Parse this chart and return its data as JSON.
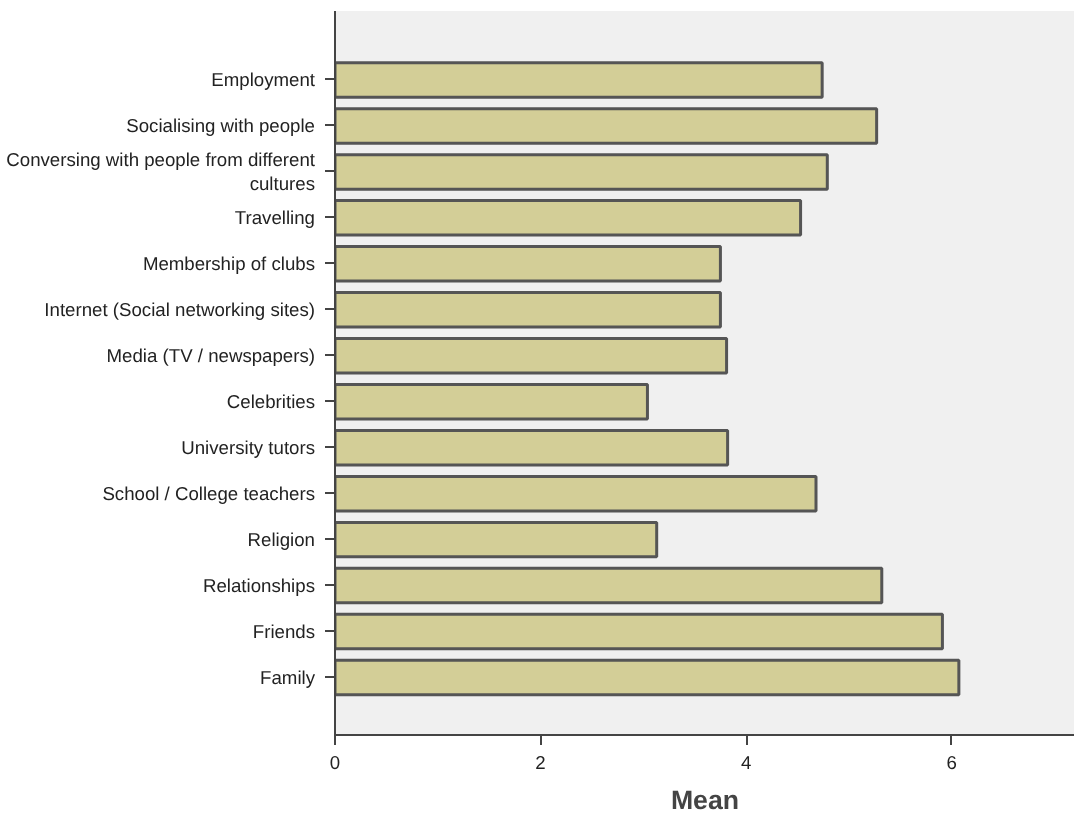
{
  "chart_data": {
    "type": "bar",
    "orientation": "horizontal",
    "xlabel": "Mean",
    "categories": [
      "Employment",
      "Socialising with people",
      "Conversing with people from different cultures",
      "Travelling",
      "Membership of clubs",
      "Internet (Social networking sites)",
      "Media (TV / newspapers)",
      "Celebrities",
      "University tutors",
      "School / College teachers",
      "Religion",
      "Relationships",
      "Friends",
      "Family"
    ],
    "values": [
      4.74,
      5.27,
      4.79,
      4.53,
      3.75,
      3.75,
      3.81,
      3.04,
      3.82,
      4.68,
      3.13,
      5.32,
      5.91,
      6.07
    ],
    "color": "#d3ce97",
    "xlim": [
      0,
      7.2
    ],
    "xticks": [
      0,
      2,
      4,
      6
    ],
    "grid": false
  }
}
